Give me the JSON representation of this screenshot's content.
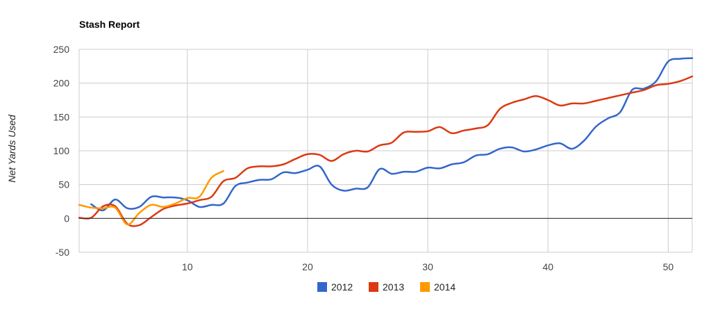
{
  "chart_data": {
    "type": "line",
    "title": "Stash Report",
    "xlabel": "",
    "ylabel": "Net Yards Used",
    "xlim": [
      1,
      52
    ],
    "ylim": [
      -50,
      250
    ],
    "x_ticks": [
      10,
      20,
      30,
      40,
      50
    ],
    "y_ticks": [
      -50,
      0,
      50,
      100,
      150,
      200,
      250
    ],
    "grid": true,
    "legend": "bottom",
    "series": [
      {
        "name": "2012",
        "color": "#3366cc",
        "x": [
          2,
          3,
          4,
          5,
          6,
          7,
          8,
          9,
          10,
          11,
          12,
          13,
          14,
          15,
          16,
          17,
          18,
          19,
          20,
          21,
          22,
          23,
          24,
          25,
          26,
          27,
          28,
          29,
          30,
          31,
          32,
          33,
          34,
          35,
          36,
          37,
          38,
          39,
          40,
          41,
          42,
          43,
          44,
          45,
          46,
          47,
          48,
          49,
          50,
          51,
          52
        ],
        "values": [
          21,
          12,
          28,
          15,
          17,
          32,
          31,
          31,
          27,
          17,
          20,
          22,
          48,
          53,
          57,
          58,
          68,
          67,
          72,
          77,
          50,
          41,
          44,
          46,
          73,
          66,
          69,
          69,
          75,
          74,
          80,
          83,
          93,
          95,
          103,
          105,
          99,
          102,
          108,
          111,
          103,
          115,
          136,
          148,
          157,
          190,
          192,
          203,
          232,
          236,
          237
        ]
      },
      {
        "name": "2013",
        "color": "#dc3912",
        "x": [
          1,
          2,
          3,
          4,
          5,
          6,
          7,
          8,
          9,
          10,
          11,
          12,
          13,
          14,
          15,
          16,
          17,
          18,
          19,
          20,
          21,
          22,
          23,
          24,
          25,
          26,
          27,
          28,
          29,
          30,
          31,
          32,
          33,
          34,
          35,
          36,
          37,
          38,
          39,
          40,
          41,
          42,
          43,
          44,
          45,
          46,
          47,
          48,
          49,
          50,
          51,
          52
        ],
        "values": [
          1,
          1,
          18,
          18,
          -8,
          -10,
          2,
          14,
          19,
          22,
          27,
          32,
          55,
          60,
          74,
          77,
          77,
          80,
          88,
          95,
          94,
          85,
          95,
          100,
          99,
          108,
          112,
          127,
          128,
          129,
          135,
          126,
          130,
          133,
          138,
          162,
          171,
          176,
          181,
          175,
          167,
          170,
          170,
          174,
          178,
          182,
          186,
          190,
          197,
          199,
          203,
          210
        ]
      },
      {
        "name": "2014",
        "color": "#ff9900",
        "x": [
          1,
          2,
          3,
          4,
          5,
          6,
          7,
          8,
          9,
          10,
          11,
          12,
          13
        ],
        "values": [
          20,
          16,
          15,
          16,
          -9,
          8,
          20,
          17,
          22,
          30,
          32,
          60,
          70
        ]
      }
    ]
  }
}
